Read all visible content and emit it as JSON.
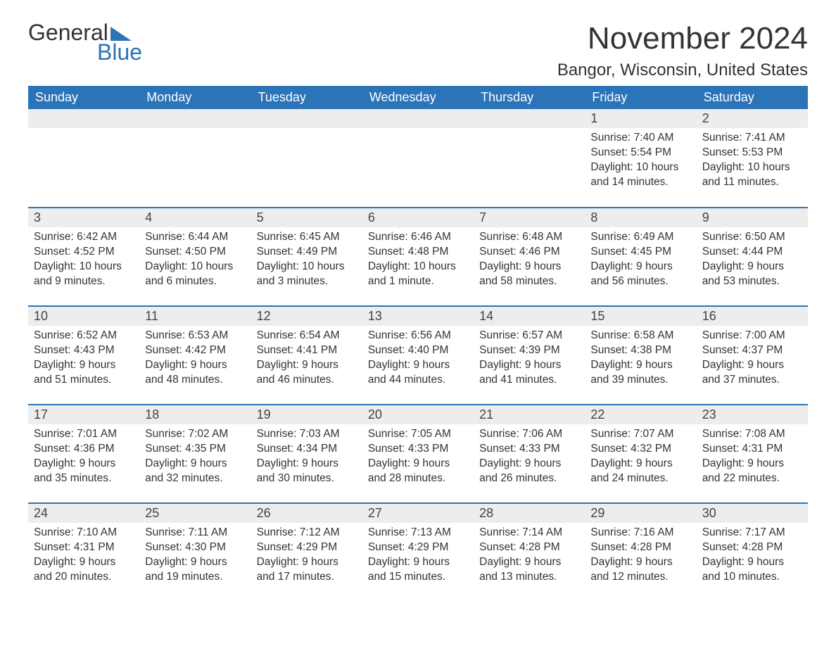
{
  "brand": {
    "word1": "General",
    "word2": "Blue",
    "accent_color": "#2b74b8"
  },
  "title": "November 2024",
  "location": "Bangor, Wisconsin, United States",
  "colors": {
    "header_bg": "#2b74b8",
    "header_text": "#ffffff",
    "daynum_bg": "#ededed",
    "text": "#333333",
    "row_border": "#2b74b8",
    "page_bg": "#ffffff"
  },
  "fonts": {
    "title_size_pt": 33,
    "location_size_pt": 18,
    "header_size_pt": 14,
    "body_size_pt": 12
  },
  "day_headers": [
    "Sunday",
    "Monday",
    "Tuesday",
    "Wednesday",
    "Thursday",
    "Friday",
    "Saturday"
  ],
  "labels": {
    "sunrise": "Sunrise",
    "sunset": "Sunset",
    "daylight": "Daylight"
  },
  "weeks": [
    [
      null,
      null,
      null,
      null,
      null,
      {
        "n": 1,
        "sunrise": "7:40 AM",
        "sunset": "5:54 PM",
        "daylight": "10 hours and 14 minutes."
      },
      {
        "n": 2,
        "sunrise": "7:41 AM",
        "sunset": "5:53 PM",
        "daylight": "10 hours and 11 minutes."
      }
    ],
    [
      {
        "n": 3,
        "sunrise": "6:42 AM",
        "sunset": "4:52 PM",
        "daylight": "10 hours and 9 minutes."
      },
      {
        "n": 4,
        "sunrise": "6:44 AM",
        "sunset": "4:50 PM",
        "daylight": "10 hours and 6 minutes."
      },
      {
        "n": 5,
        "sunrise": "6:45 AM",
        "sunset": "4:49 PM",
        "daylight": "10 hours and 3 minutes."
      },
      {
        "n": 6,
        "sunrise": "6:46 AM",
        "sunset": "4:48 PM",
        "daylight": "10 hours and 1 minute."
      },
      {
        "n": 7,
        "sunrise": "6:48 AM",
        "sunset": "4:46 PM",
        "daylight": "9 hours and 58 minutes."
      },
      {
        "n": 8,
        "sunrise": "6:49 AM",
        "sunset": "4:45 PM",
        "daylight": "9 hours and 56 minutes."
      },
      {
        "n": 9,
        "sunrise": "6:50 AM",
        "sunset": "4:44 PM",
        "daylight": "9 hours and 53 minutes."
      }
    ],
    [
      {
        "n": 10,
        "sunrise": "6:52 AM",
        "sunset": "4:43 PM",
        "daylight": "9 hours and 51 minutes."
      },
      {
        "n": 11,
        "sunrise": "6:53 AM",
        "sunset": "4:42 PM",
        "daylight": "9 hours and 48 minutes."
      },
      {
        "n": 12,
        "sunrise": "6:54 AM",
        "sunset": "4:41 PM",
        "daylight": "9 hours and 46 minutes."
      },
      {
        "n": 13,
        "sunrise": "6:56 AM",
        "sunset": "4:40 PM",
        "daylight": "9 hours and 44 minutes."
      },
      {
        "n": 14,
        "sunrise": "6:57 AM",
        "sunset": "4:39 PM",
        "daylight": "9 hours and 41 minutes."
      },
      {
        "n": 15,
        "sunrise": "6:58 AM",
        "sunset": "4:38 PM",
        "daylight": "9 hours and 39 minutes."
      },
      {
        "n": 16,
        "sunrise": "7:00 AM",
        "sunset": "4:37 PM",
        "daylight": "9 hours and 37 minutes."
      }
    ],
    [
      {
        "n": 17,
        "sunrise": "7:01 AM",
        "sunset": "4:36 PM",
        "daylight": "9 hours and 35 minutes."
      },
      {
        "n": 18,
        "sunrise": "7:02 AM",
        "sunset": "4:35 PM",
        "daylight": "9 hours and 32 minutes."
      },
      {
        "n": 19,
        "sunrise": "7:03 AM",
        "sunset": "4:34 PM",
        "daylight": "9 hours and 30 minutes."
      },
      {
        "n": 20,
        "sunrise": "7:05 AM",
        "sunset": "4:33 PM",
        "daylight": "9 hours and 28 minutes."
      },
      {
        "n": 21,
        "sunrise": "7:06 AM",
        "sunset": "4:33 PM",
        "daylight": "9 hours and 26 minutes."
      },
      {
        "n": 22,
        "sunrise": "7:07 AM",
        "sunset": "4:32 PM",
        "daylight": "9 hours and 24 minutes."
      },
      {
        "n": 23,
        "sunrise": "7:08 AM",
        "sunset": "4:31 PM",
        "daylight": "9 hours and 22 minutes."
      }
    ],
    [
      {
        "n": 24,
        "sunrise": "7:10 AM",
        "sunset": "4:31 PM",
        "daylight": "9 hours and 20 minutes."
      },
      {
        "n": 25,
        "sunrise": "7:11 AM",
        "sunset": "4:30 PM",
        "daylight": "9 hours and 19 minutes."
      },
      {
        "n": 26,
        "sunrise": "7:12 AM",
        "sunset": "4:29 PM",
        "daylight": "9 hours and 17 minutes."
      },
      {
        "n": 27,
        "sunrise": "7:13 AM",
        "sunset": "4:29 PM",
        "daylight": "9 hours and 15 minutes."
      },
      {
        "n": 28,
        "sunrise": "7:14 AM",
        "sunset": "4:28 PM",
        "daylight": "9 hours and 13 minutes."
      },
      {
        "n": 29,
        "sunrise": "7:16 AM",
        "sunset": "4:28 PM",
        "daylight": "9 hours and 12 minutes."
      },
      {
        "n": 30,
        "sunrise": "7:17 AM",
        "sunset": "4:28 PM",
        "daylight": "9 hours and 10 minutes."
      }
    ]
  ]
}
